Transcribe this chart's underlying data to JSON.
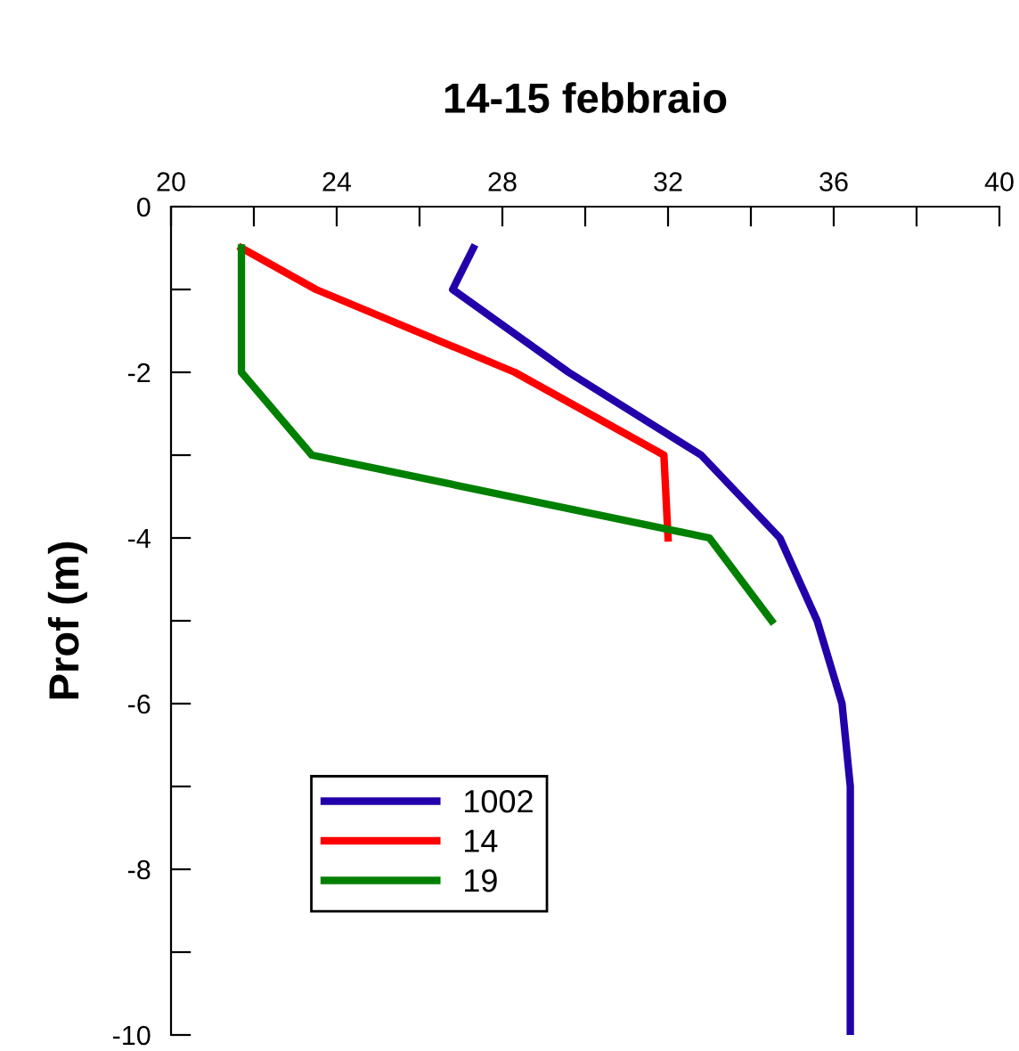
{
  "chart_data": {
    "type": "line",
    "title": "14-15 febbraio",
    "ylabel": "Prof (m)",
    "xlim": [
      20,
      40
    ],
    "ylim": [
      -10,
      0
    ],
    "xticks": [
      20,
      {
        "value": 22,
        "label": null
      },
      24,
      {
        "value": 26,
        "label": null
      },
      28,
      {
        "value": 30,
        "label": null
      },
      32,
      {
        "value": 34,
        "label": null
      },
      36,
      {
        "value": 38,
        "label": null
      },
      40
    ],
    "yticks": [
      0,
      {
        "value": -1,
        "label": null
      },
      -2,
      {
        "value": -3,
        "label": null
      },
      -4,
      {
        "value": -5,
        "label": null
      },
      -6,
      {
        "value": -7,
        "label": null
      },
      -8,
      {
        "value": -9,
        "label": null
      },
      -10
    ],
    "grid": false,
    "legend": "bottom left",
    "marker": "none",
    "line_style": "solid",
    "series": [
      {
        "name": "1002",
        "color": "#2200aa",
        "x": [
          27.3,
          26.8,
          29.6,
          32.8,
          34.7,
          35.6,
          36.2,
          36.4,
          36.4,
          36.4,
          36.4
        ],
        "values": [
          -0.5,
          -1,
          -2,
          -3,
          -4,
          -5,
          -6,
          -7,
          -8,
          -9,
          -10
        ]
      },
      {
        "name": "14",
        "color": "#ff0000",
        "x": [
          21.7,
          23.5,
          28.3,
          31.9,
          32.0
        ],
        "values": [
          -0.5,
          -1,
          -2,
          -3,
          -4
        ]
      },
      {
        "name": "19",
        "color": "#008000",
        "x": [
          21.7,
          21.7,
          21.7,
          23.4,
          33.0,
          34.5
        ],
        "values": [
          -0.5,
          -1,
          -2,
          -3,
          -4,
          -5
        ]
      }
    ]
  }
}
